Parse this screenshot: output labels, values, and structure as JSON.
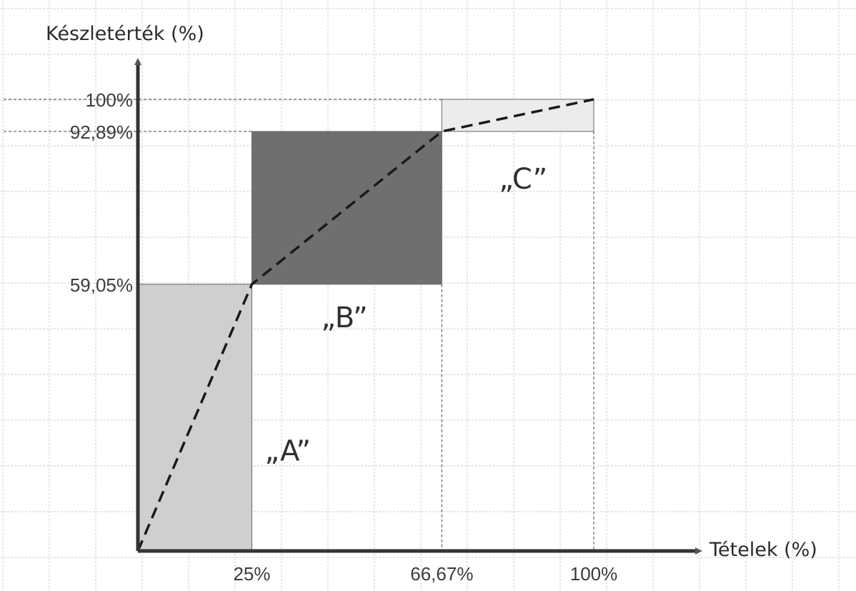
{
  "chart_data": {
    "type": "area",
    "title": "",
    "xlabel": "Tételek (%)",
    "ylabel": "Készletérték (%)",
    "xlim": [
      0,
      100
    ],
    "ylim": [
      0,
      100
    ],
    "grid": true,
    "x_ticks": [
      {
        "value": 25,
        "label": "25%"
      },
      {
        "value": 66.67,
        "label": "66,67%"
      },
      {
        "value": 100,
        "label": "100%"
      }
    ],
    "y_ticks": [
      {
        "value": 59.05,
        "label": "59,05%"
      },
      {
        "value": 92.89,
        "label": "92,89%"
      },
      {
        "value": 100,
        "label": "100%"
      }
    ],
    "classes": [
      {
        "label": "„A”",
        "x": [
          0,
          25
        ],
        "y": [
          0,
          59.05
        ],
        "color": "#cfcfcf"
      },
      {
        "label": "„B”",
        "x": [
          25,
          66.67
        ],
        "y": [
          59.05,
          92.89
        ],
        "color": "#6f6f6f"
      },
      {
        "label": "„C”",
        "x": [
          66.67,
          100
        ],
        "y": [
          92.89,
          100
        ],
        "color": "#ececec"
      }
    ],
    "cumulative_curve": {
      "x": [
        0,
        25,
        66.67,
        100
      ],
      "y": [
        0,
        59.05,
        92.89,
        100
      ],
      "style": "dashed"
    }
  }
}
